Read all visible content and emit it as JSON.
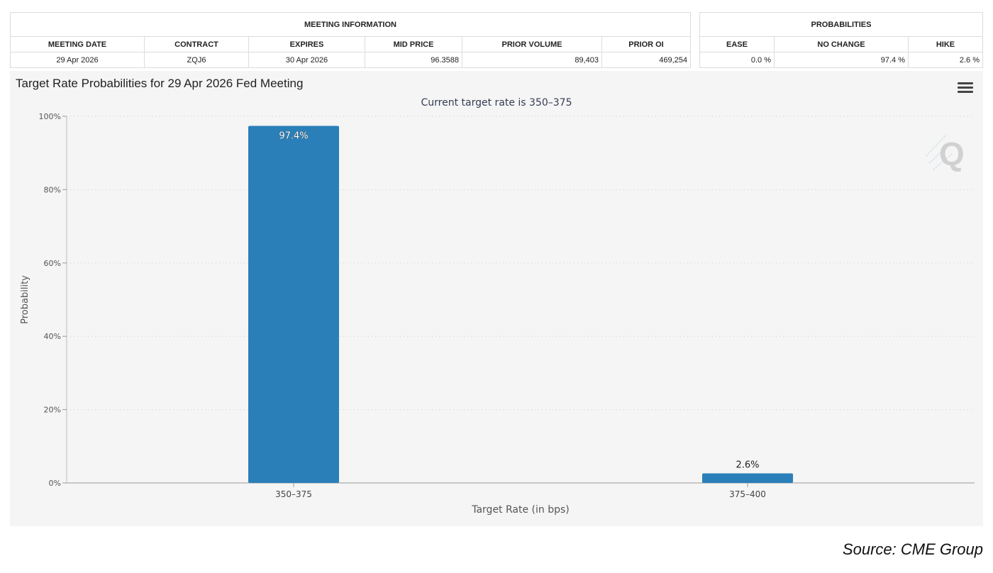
{
  "meeting_info": {
    "header": "MEETING INFORMATION",
    "columns": [
      "MEETING DATE",
      "CONTRACT",
      "EXPIRES",
      "MID PRICE",
      "PRIOR VOLUME",
      "PRIOR OI"
    ],
    "row": [
      "29 Apr 2026",
      "ZQJ6",
      "30 Apr 2026",
      "96.3588",
      "89,403",
      "469,254"
    ]
  },
  "probabilities": {
    "header": "PROBABILITIES",
    "columns": [
      "EASE",
      "NO CHANGE",
      "HIKE"
    ],
    "row": [
      "0.0 %",
      "97.4 %",
      "2.6 %"
    ]
  },
  "source": "Source: CME Group",
  "colors": {
    "bar": "#2a7fb8",
    "grid": "#cccccc",
    "panel": "#f5f5f5"
  },
  "chart_data": {
    "type": "bar",
    "title": "Target Rate Probabilities for 29 Apr 2026 Fed Meeting",
    "subtitle": "Current target rate is 350–375",
    "xlabel": "Target Rate (in bps)",
    "ylabel": "Probability",
    "categories": [
      "350–375",
      "375–400"
    ],
    "values": [
      97.4,
      2.6
    ],
    "data_labels": [
      "97.4%",
      "2.6%"
    ],
    "ylim": [
      0,
      100
    ],
    "yticks": [
      0,
      20,
      40,
      60,
      80,
      100
    ],
    "ytick_labels": [
      "0%",
      "20%",
      "40%",
      "60%",
      "80%",
      "100%"
    ],
    "grid": true
  }
}
